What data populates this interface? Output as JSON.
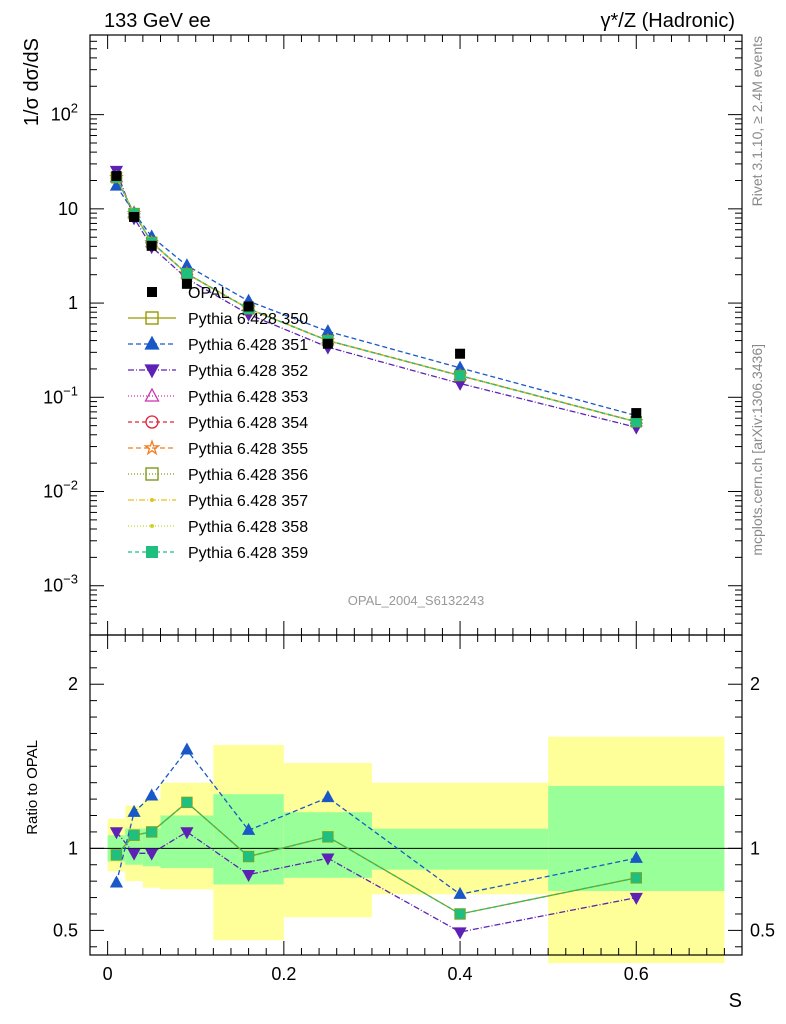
{
  "header": {
    "left": "133 GeV ee",
    "right": "γ*/Z (Hadronic)"
  },
  "side_labels": {
    "rivet": "Rivet 3.1.10, ≥ 2.4M events",
    "mcplots": "mcplots.cern.ch [arXiv:1306.3436]"
  },
  "watermark": "OPAL_2004_S6132243",
  "chart_data": [
    {
      "type": "line",
      "panel": "main",
      "ylabel": "1/σ dσ/dS",
      "yscale": "log",
      "ylim": [
        0.0003,
        700
      ],
      "xlim": [
        -0.02,
        0.72
      ],
      "yticks": [
        {
          "v": 0.001,
          "base": "10",
          "exp": "−3"
        },
        {
          "v": 0.01,
          "base": "10",
          "exp": "−2"
        },
        {
          "v": 0.1,
          "base": "10",
          "exp": "−1"
        },
        {
          "v": 1,
          "base": "1",
          "exp": ""
        },
        {
          "v": 10,
          "base": "10",
          "exp": ""
        },
        {
          "v": 100,
          "base": "10",
          "exp": "2"
        }
      ],
      "x": [
        0.01,
        0.03,
        0.05,
        0.09,
        0.16,
        0.25,
        0.4,
        0.6
      ],
      "data": {
        "name": "OPAL",
        "values": [
          22.3,
          8.2,
          4.05,
          1.6,
          0.92,
          0.37,
          0.29,
          0.068
        ]
      },
      "series": [
        {
          "name": "Pythia 6.428 350",
          "color": "#999900",
          "marker": "square-open",
          "dash": "",
          "values": [
            21.5,
            8.9,
            4.4,
            2.05,
            0.87,
            0.4,
            0.17,
            0.055
          ]
        },
        {
          "name": "Pythia 6.428 351",
          "color": "#1a57c7",
          "marker": "triangle-up",
          "dash": "5,3",
          "values": [
            17.5,
            9.1,
            5.05,
            2.5,
            1.05,
            0.5,
            0.205,
            0.064
          ]
        },
        {
          "name": "Pythia 6.428 352",
          "color": "#5d22b5",
          "marker": "triangle-down",
          "dash": "6,2,1,2",
          "values": [
            25.5,
            8.0,
            3.95,
            1.82,
            0.76,
            0.34,
            0.14,
            0.048
          ]
        },
        {
          "name": "Pythia 6.428 353",
          "color": "#cc33aa",
          "marker": "triangle-open",
          "dash": "1,2",
          "values": [
            21.5,
            8.9,
            4.4,
            2.05,
            0.87,
            0.4,
            0.17,
            0.055
          ]
        },
        {
          "name": "Pythia 6.428 354",
          "color": "#e0203a",
          "marker": "circle-open",
          "dash": "4,3",
          "values": [
            21.5,
            8.9,
            4.4,
            2.05,
            0.87,
            0.4,
            0.17,
            0.055
          ]
        },
        {
          "name": "Pythia 6.428 355",
          "color": "#f07d1e",
          "marker": "star-open",
          "dash": "5,3",
          "values": [
            21.5,
            8.9,
            4.4,
            2.05,
            0.87,
            0.4,
            0.17,
            0.055
          ]
        },
        {
          "name": "Pythia 6.428 356",
          "color": "#7f9a1a",
          "marker": "square-open",
          "dash": "1,2",
          "values": [
            21.5,
            8.9,
            4.4,
            2.05,
            0.87,
            0.4,
            0.17,
            0.055
          ]
        },
        {
          "name": "Pythia 6.428 357",
          "color": "#e6c21a",
          "marker": "dot",
          "dash": "6,2,1,2",
          "values": [
            21.5,
            8.9,
            4.4,
            2.05,
            0.87,
            0.4,
            0.17,
            0.055
          ]
        },
        {
          "name": "Pythia 6.428 358",
          "color": "#c9d62a",
          "marker": "dot",
          "dash": "1,2",
          "values": [
            21.5,
            8.9,
            4.4,
            2.05,
            0.87,
            0.4,
            0.17,
            0.055
          ]
        },
        {
          "name": "Pythia 6.428 359",
          "color": "#1fbf7f",
          "marker": "square",
          "dash": "4,3",
          "values": [
            21.5,
            8.9,
            4.4,
            2.05,
            0.87,
            0.4,
            0.17,
            0.055
          ]
        }
      ]
    },
    {
      "type": "line",
      "panel": "ratio",
      "ylabel": "Ratio to OPAL",
      "xlabel": "S",
      "ylim": [
        0.35,
        2.3
      ],
      "xlim": [
        -0.02,
        0.72
      ],
      "yticks": [
        0.5,
        1,
        2
      ],
      "ytick_labels": [
        "0.5",
        "1",
        "2"
      ],
      "xticks": [
        0,
        0.2,
        0.4,
        0.6
      ],
      "xtick_labels": [
        "0",
        "0.2",
        "0.4",
        "0.6"
      ],
      "bands": [
        {
          "x0": 0.0,
          "x1": 0.02,
          "inner": [
            0.92,
            1.08
          ],
          "outer": [
            0.86,
            1.18
          ]
        },
        {
          "x0": 0.02,
          "x1": 0.04,
          "inner": [
            0.9,
            1.12
          ],
          "outer": [
            0.8,
            1.26
          ]
        },
        {
          "x0": 0.04,
          "x1": 0.06,
          "inner": [
            0.89,
            1.12
          ],
          "outer": [
            0.76,
            1.3
          ]
        },
        {
          "x0": 0.06,
          "x1": 0.12,
          "inner": [
            0.88,
            1.2
          ],
          "outer": [
            0.75,
            1.4
          ]
        },
        {
          "x0": 0.12,
          "x1": 0.2,
          "inner": [
            0.78,
            1.33
          ],
          "outer": [
            0.44,
            1.63
          ]
        },
        {
          "x0": 0.2,
          "x1": 0.3,
          "inner": [
            0.82,
            1.22
          ],
          "outer": [
            0.58,
            1.52
          ]
        },
        {
          "x0": 0.3,
          "x1": 0.5,
          "inner": [
            0.87,
            1.12
          ],
          "outer": [
            0.72,
            1.4
          ]
        },
        {
          "x0": 0.5,
          "x1": 0.7,
          "inner": [
            0.74,
            1.38
          ],
          "outer": [
            0.3,
            1.68
          ]
        }
      ],
      "x": [
        0.01,
        0.03,
        0.05,
        0.09,
        0.16,
        0.25,
        0.4,
        0.6
      ],
      "series": [
        {
          "name": "Pythia 6.428 350",
          "color": "#999900",
          "marker": "square-open",
          "dash": "",
          "values": [
            0.96,
            1.08,
            1.1,
            1.28,
            0.95,
            1.07,
            0.6,
            0.82
          ]
        },
        {
          "name": "Pythia 6.428 351",
          "color": "#1a57c7",
          "marker": "triangle-up",
          "dash": "5,3",
          "values": [
            0.79,
            1.22,
            1.32,
            1.6,
            1.11,
            1.31,
            0.72,
            0.94
          ]
        },
        {
          "name": "Pythia 6.428 352",
          "color": "#5d22b5",
          "marker": "triangle-down",
          "dash": "6,2,1,2",
          "values": [
            1.1,
            0.97,
            0.97,
            1.1,
            0.84,
            0.94,
            0.49,
            0.7
          ]
        },
        {
          "name": "Pythia 6.428 359",
          "color": "#1fbf7f",
          "marker": "square",
          "dash": "4,3",
          "values": [
            0.96,
            1.08,
            1.1,
            1.28,
            0.95,
            1.07,
            0.6,
            0.82
          ]
        }
      ]
    }
  ]
}
